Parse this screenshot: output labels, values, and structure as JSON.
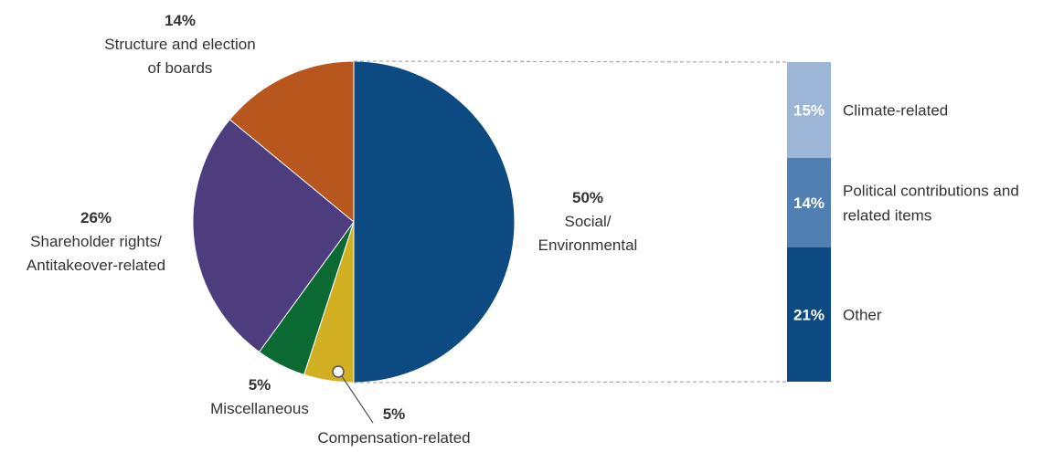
{
  "chart_data": [
    {
      "type": "pie",
      "slices": [
        {
          "value": 50,
          "pct_label": "50%",
          "label_lines": [
            "Social/",
            "Environmental"
          ],
          "color": "#0d4a82"
        },
        {
          "value": 5,
          "pct_label": "5%",
          "label_lines": [
            "Compensation-related"
          ],
          "color": "#d3b021"
        },
        {
          "value": 5,
          "pct_label": "5%",
          "label_lines": [
            "Miscellaneous"
          ],
          "color": "#0b6a34"
        },
        {
          "value": 26,
          "pct_label": "26%",
          "label_lines": [
            "Shareholder rights/",
            "Antitakeover-related"
          ],
          "color": "#4e3d7e"
        },
        {
          "value": 14,
          "pct_label": "14%",
          "label_lines": [
            "Structure and election",
            "of boards"
          ],
          "color": "#b8571d"
        }
      ]
    },
    {
      "type": "bar",
      "stacked": true,
      "breakdown_of": "Social/Environmental",
      "segments": [
        {
          "value": 15,
          "pct_label": "15%",
          "label_lines": [
            "Climate-related"
          ],
          "color": "#9db5d6"
        },
        {
          "value": 14,
          "pct_label": "14%",
          "label_lines": [
            "Political contributions and",
            "related items"
          ],
          "color": "#4f7fb3"
        },
        {
          "value": 21,
          "pct_label": "21%",
          "label_lines": [
            "Other"
          ],
          "color": "#0d4a82"
        }
      ]
    }
  ]
}
